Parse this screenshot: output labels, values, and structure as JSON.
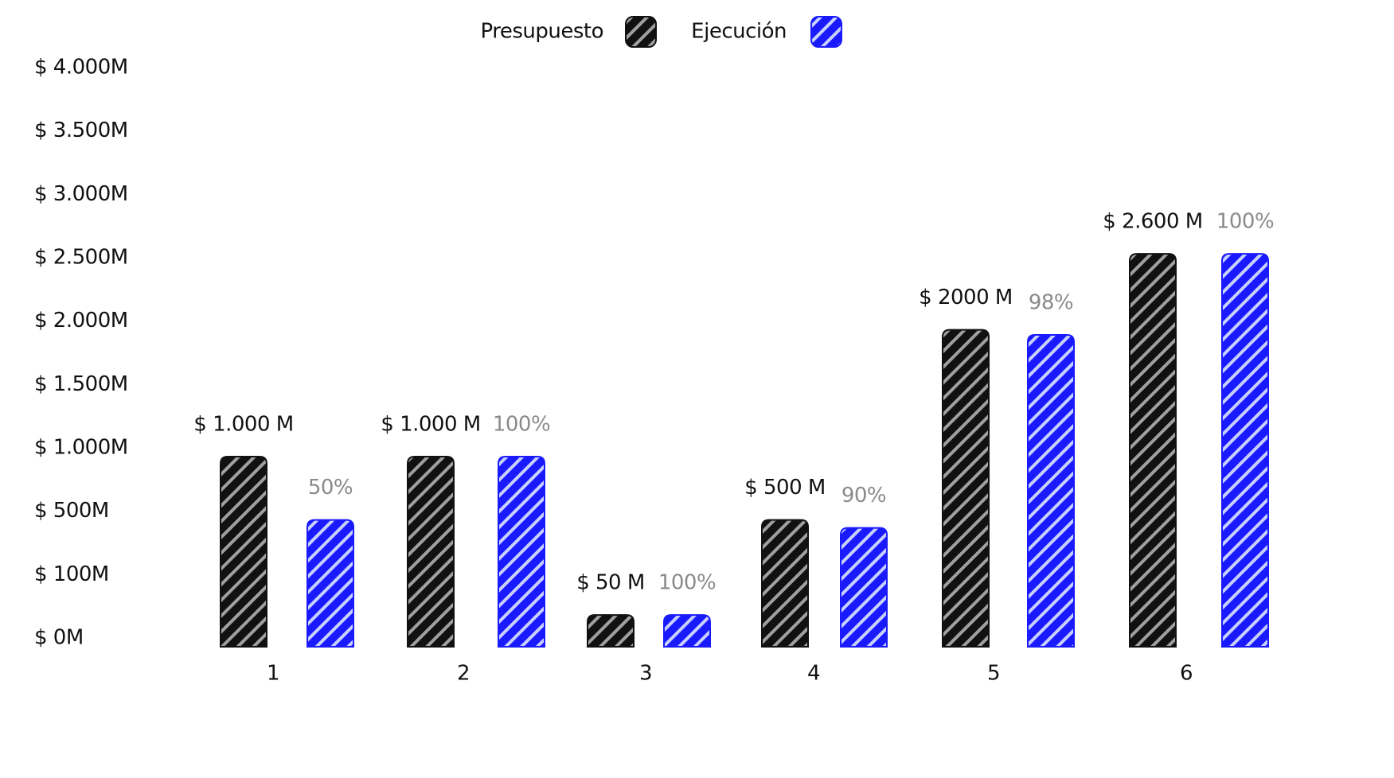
{
  "chart_data": {
    "type": "bar",
    "categories": [
      "1",
      "2",
      "3",
      "4",
      "5",
      "6"
    ],
    "series": [
      {
        "name": "Presupuesto",
        "color": "#111111",
        "stripe_color": "#a0a0a0",
        "values": [
          1000,
          1000,
          50,
          500,
          2000,
          2600
        ],
        "value_labels": [
          "$ 1.000 M",
          "$ 1.000 M",
          "$ 50 M",
          "$ 500 M",
          "$ 2000 M",
          "$ 2.600 M"
        ]
      },
      {
        "name": "Ejecución",
        "color": "#1a1aff",
        "stripe_color": "#c8d0ff",
        "values": [
          500,
          1000,
          50,
          450,
          1960,
          2600
        ],
        "percent_labels": [
          "50%",
          "100%",
          "100%",
          "90%",
          "98%",
          "100%"
        ]
      }
    ],
    "ylim": [
      0,
      4000
    ],
    "yticks": [
      {
        "value": 0,
        "label": "$ 0M"
      },
      {
        "value": 100,
        "label": "$ 100M"
      },
      {
        "value": 500,
        "label": "$ 500M"
      },
      {
        "value": 1000,
        "label": "$ 1.000M"
      },
      {
        "value": 1500,
        "label": "$ 1.500M"
      },
      {
        "value": 2000,
        "label": "$ 2.000M"
      },
      {
        "value": 2500,
        "label": "$ 2.500M"
      },
      {
        "value": 3000,
        "label": "$ 3.000M"
      },
      {
        "value": 3500,
        "label": "$ 3.500M"
      },
      {
        "value": 4000,
        "label": "$ 4.000M"
      }
    ],
    "grid": false
  }
}
